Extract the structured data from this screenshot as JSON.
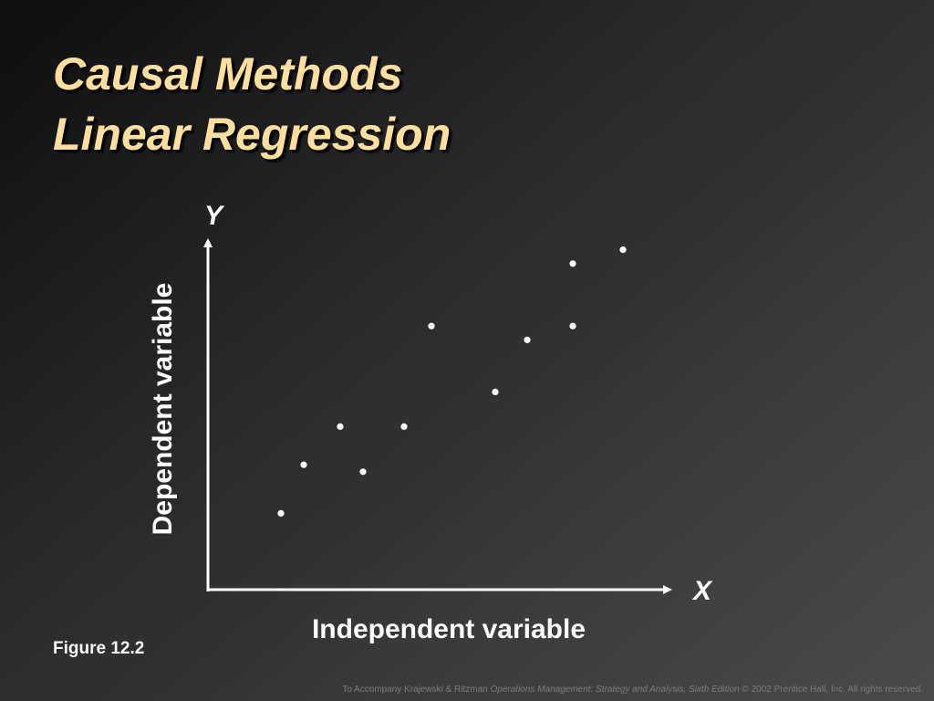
{
  "slide": {
    "title_line1": "Causal Methods",
    "title_line2": "Linear Regression",
    "figure_label": "Figure 12.2",
    "footer": {
      "prefix": "To Accompany Krajewski & Ritzman ",
      "book_title": "Operations Management: Strategy and Analysis, Sixth Edition",
      "suffix": " © 2002 Prentice Hall, Inc. All rights reserved."
    }
  },
  "colors": {
    "title": "#ffdfa0",
    "axis": "#ffffff",
    "points": "#ffffff",
    "footer": "#7a7a7a"
  },
  "chart_data": {
    "type": "scatter",
    "title": "",
    "x_axis_letter": "X",
    "y_axis_letter": "Y",
    "xlabel": "Independent variable",
    "ylabel": "Dependent variable",
    "xlim": [
      0,
      100
    ],
    "ylim": [
      0,
      100
    ],
    "tick_labels": false,
    "grid": false,
    "legend": false,
    "points": [
      {
        "x": 16,
        "y": 22
      },
      {
        "x": 21,
        "y": 36
      },
      {
        "x": 29,
        "y": 47
      },
      {
        "x": 34,
        "y": 34
      },
      {
        "x": 43,
        "y": 47
      },
      {
        "x": 49,
        "y": 76
      },
      {
        "x": 63,
        "y": 57
      },
      {
        "x": 70,
        "y": 72
      },
      {
        "x": 80,
        "y": 94
      },
      {
        "x": 80,
        "y": 76
      },
      {
        "x": 91,
        "y": 98
      }
    ]
  }
}
